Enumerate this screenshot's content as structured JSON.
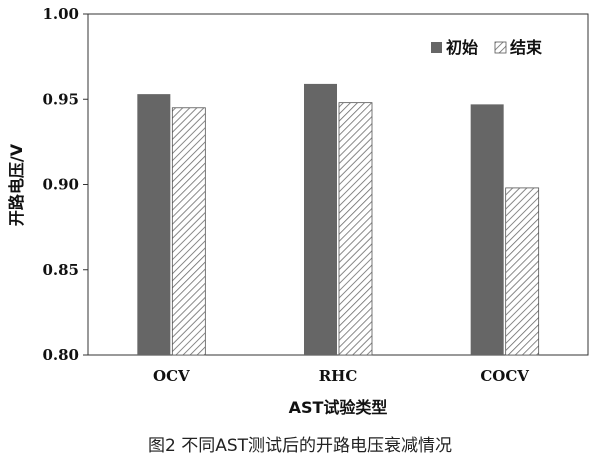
{
  "caption": "图2 不同AST测试后的开路电压衰减情况",
  "chart_data": {
    "type": "bar",
    "title": "",
    "xlabel": "AST试验类型",
    "ylabel": "开路电压/V",
    "categories": [
      "OCV",
      "RHC",
      "COCV"
    ],
    "series": [
      {
        "name": "初始",
        "values": [
          0.953,
          0.959,
          0.947
        ],
        "pattern": "solid",
        "color": "#666666"
      },
      {
        "name": "结束",
        "values": [
          0.945,
          0.948,
          0.898
        ],
        "pattern": "hatched",
        "color": "#ffffff"
      }
    ],
    "ylim": [
      0.8,
      1.0
    ],
    "yticks": [
      "0.80",
      "0.85",
      "0.90",
      "0.95",
      "1.00"
    ],
    "grid": false,
    "legend": "top-right"
  }
}
